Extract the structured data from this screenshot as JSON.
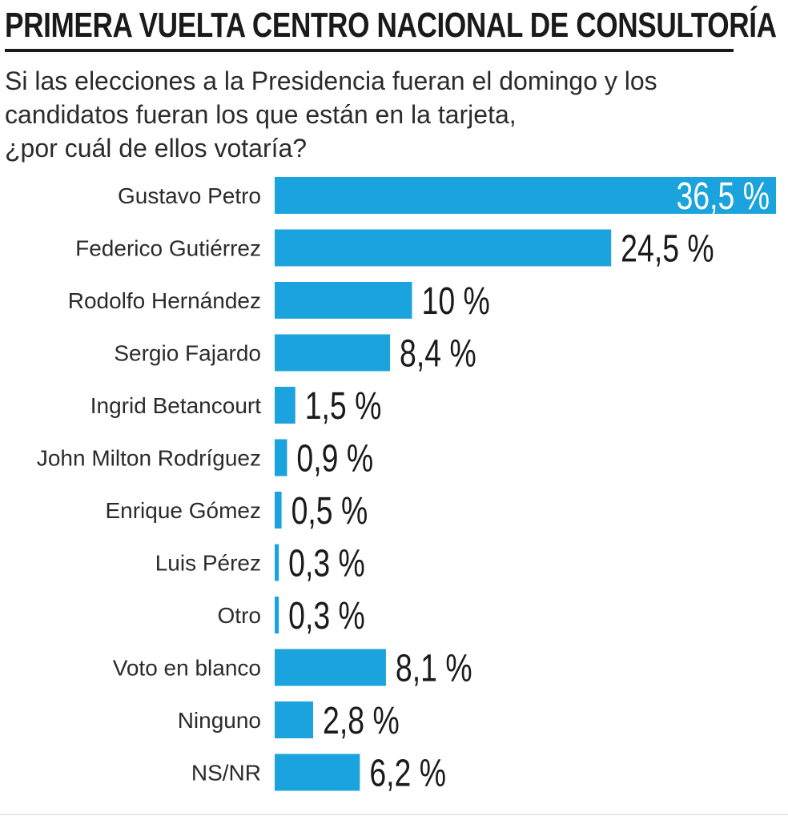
{
  "header": {
    "title": "PRIMERA VUELTA CENTRO NACIONAL DE CONSULTORÍA",
    "subtitle_lines": [
      "Si las elecciones a la Presidencia fueran el domingo y los",
      "candidatos fueran los que están en la tarjeta,",
      "¿por cuál de ellos votaría?"
    ]
  },
  "colors": {
    "bar": "#1aa3dc",
    "text": "#1a1a1a",
    "inside_label": "#ffffff"
  },
  "chart_data": {
    "type": "bar",
    "orientation": "horizontal",
    "title": "PRIMERA VUELTA CENTRO NACIONAL DE CONSULTORÍA",
    "xlabel": "",
    "ylabel": "",
    "xlim": [
      0,
      36.5
    ],
    "categories": [
      "Gustavo Petro",
      "Federico Gutiérrez",
      "Rodolfo Hernández",
      "Sergio Fajardo",
      "Ingrid Betancourt",
      "John Milton Rodríguez",
      "Enrique Gómez",
      "Luis Pérez",
      "Otro",
      "Voto en blanco",
      "Ninguno",
      "NS/NR"
    ],
    "values": [
      36.5,
      24.5,
      10,
      8.4,
      1.5,
      0.9,
      0.5,
      0.3,
      0.3,
      8.1,
      2.8,
      6.2
    ],
    "value_labels": [
      "36,5 %",
      "24,5 %",
      "10 %",
      "8,4 %",
      "1,5 %",
      "0,9 %",
      "0,5 %",
      "0,3 %",
      "0,3 %",
      "8,1 %",
      "2,8 %",
      "6,2 %"
    ],
    "grid": false,
    "legend": "none"
  }
}
